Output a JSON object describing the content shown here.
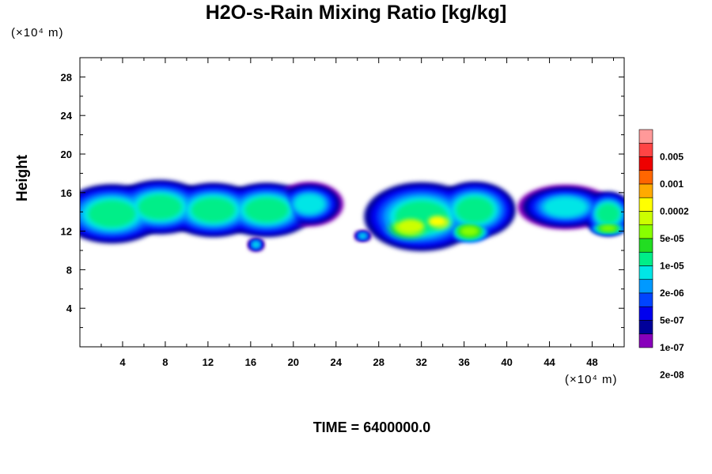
{
  "chart_data": {
    "type": "heatmap",
    "title": "H2O-s-Rain Mixing Ratio [kg/kg]",
    "xlabel": "",
    "ylabel": "Height",
    "x_unit": "(×10⁴ m)",
    "y_unit": "(×10⁴ m)",
    "xlim": [
      0,
      51
    ],
    "ylim": [
      0,
      30
    ],
    "x_ticks": [
      4,
      8,
      12,
      16,
      20,
      24,
      28,
      32,
      36,
      40,
      44,
      48
    ],
    "y_ticks": [
      4,
      8,
      12,
      16,
      20,
      24,
      28
    ],
    "grid": false,
    "colorbar": {
      "placement": "right",
      "labels": [
        "0.005",
        "0.001",
        "0.0002",
        "5e-05",
        "1e-05",
        "2e-06",
        "5e-07",
        "1e-07",
        "2e-08"
      ],
      "colors": [
        "#ff9999",
        "#ff4444",
        "#ee0000",
        "#ff6600",
        "#ffaa00",
        "#ffff00",
        "#ccff00",
        "#88ff00",
        "#22dd22",
        "#00ee88",
        "#00e6e6",
        "#0099ff",
        "#0044ff",
        "#0000ee",
        "#000099",
        "#8800bb"
      ]
    },
    "field_blobs": [
      {
        "x": 3,
        "y": 13.8,
        "rx": 3.8,
        "ry": 2.4,
        "level": 7
      },
      {
        "x": 7.5,
        "y": 14.5,
        "rx": 3.5,
        "ry": 2.2,
        "level": 7
      },
      {
        "x": 12.5,
        "y": 14.2,
        "rx": 3.5,
        "ry": 2.2,
        "level": 7
      },
      {
        "x": 17.5,
        "y": 14.2,
        "rx": 3.5,
        "ry": 2.2,
        "level": 7
      },
      {
        "x": 21.5,
        "y": 14.8,
        "rx": 2.5,
        "ry": 1.8,
        "level": 8
      },
      {
        "x": 32,
        "y": 13.5,
        "rx": 4.2,
        "ry": 2.8,
        "level": 7
      },
      {
        "x": 37,
        "y": 14.2,
        "rx": 3,
        "ry": 2.3,
        "level": 7
      },
      {
        "x": 45.5,
        "y": 14.5,
        "rx": 3.5,
        "ry": 1.8,
        "level": 8
      },
      {
        "x": 49.5,
        "y": 13.8,
        "rx": 1.8,
        "ry": 1.8,
        "level": 7
      },
      {
        "x": 31,
        "y": 12.5,
        "rx": 2.2,
        "ry": 1.3,
        "level": 4
      },
      {
        "x": 33.5,
        "y": 13,
        "rx": 1.5,
        "ry": 1,
        "level": 3
      },
      {
        "x": 36.5,
        "y": 12,
        "rx": 1.5,
        "ry": 0.9,
        "level": 5
      },
      {
        "x": 49.5,
        "y": 12.3,
        "rx": 1.3,
        "ry": 0.5,
        "level": 5
      },
      {
        "x": 16.5,
        "y": 10.6,
        "rx": 0.6,
        "ry": 0.5,
        "level": 8
      },
      {
        "x": 26.5,
        "y": 11.5,
        "rx": 0.6,
        "ry": 0.4,
        "level": 8
      }
    ]
  },
  "footer": {
    "time_label": "TIME = 6400000.0"
  }
}
